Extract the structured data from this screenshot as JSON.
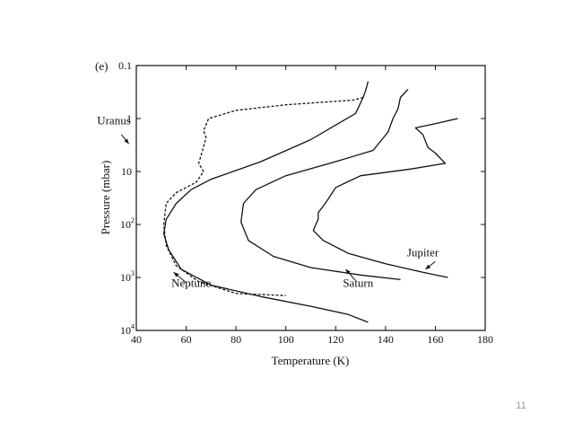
{
  "slide": {
    "number": "11"
  },
  "chart_data": {
    "type": "line",
    "panel_label": "(e)",
    "title": "",
    "xlabel": "Temperature (K)",
    "ylabel": "Pressure (mbar)",
    "xlim": [
      40,
      180
    ],
    "ylim": [
      10000,
      0.1
    ],
    "yscale": "log",
    "grid": false,
    "xticks": [
      {
        "value": 40,
        "label": "40"
      },
      {
        "value": 60,
        "label": "60"
      },
      {
        "value": 80,
        "label": "80"
      },
      {
        "value": 100,
        "label": "100"
      },
      {
        "value": 120,
        "label": "120"
      },
      {
        "value": 140,
        "label": "140"
      },
      {
        "value": 160,
        "label": "160"
      },
      {
        "value": 180,
        "label": "180"
      }
    ],
    "yticks": [
      {
        "value": 0.1,
        "base": "0.1",
        "exp": ""
      },
      {
        "value": 1,
        "base": "1",
        "exp": ""
      },
      {
        "value": 10,
        "base": "10",
        "exp": ""
      },
      {
        "value": 100,
        "base": "10",
        "exp": "2"
      },
      {
        "value": 1000,
        "base": "10",
        "exp": "3"
      },
      {
        "value": 10000,
        "base": "10",
        "exp": "4"
      }
    ],
    "series": [
      {
        "name": "Uranus",
        "dash": true,
        "label_at": [
          31,
          1.3
        ],
        "arrow_from": [
          34,
          2.0
        ],
        "arrow_to": [
          37,
          3.0
        ],
        "points": [
          [
            131,
            0.4
          ],
          [
            127,
            0.45
          ],
          [
            100,
            0.55
          ],
          [
            80,
            0.7
          ],
          [
            69,
            1.0
          ],
          [
            67,
            1.7
          ],
          [
            68,
            2.3
          ],
          [
            66,
            5
          ],
          [
            65,
            7
          ],
          [
            67,
            10
          ],
          [
            64,
            16
          ],
          [
            56,
            25
          ],
          [
            52,
            40
          ],
          [
            51,
            100
          ],
          [
            52,
            250
          ],
          [
            56,
            600
          ],
          [
            65,
            1200
          ],
          [
            80,
            2000
          ],
          [
            100,
            2200
          ]
        ]
      },
      {
        "name": "Neptune",
        "dash": false,
        "label_at": [
          62,
          1500
        ],
        "arrow_from": [
          60,
          1250
        ],
        "arrow_to": [
          55,
          800
        ],
        "points": [
          [
            133,
            0.2
          ],
          [
            132,
            0.3
          ],
          [
            131,
            0.4
          ],
          [
            128,
            0.8
          ],
          [
            110,
            2.5
          ],
          [
            90,
            6.5
          ],
          [
            70,
            14
          ],
          [
            62,
            22
          ],
          [
            56,
            40
          ],
          [
            52,
            80
          ],
          [
            51,
            150
          ],
          [
            53,
            300
          ],
          [
            58,
            700
          ],
          [
            70,
            1400
          ],
          [
            90,
            2300
          ],
          [
            110,
            3500
          ],
          [
            125,
            5000
          ],
          [
            133,
            7000
          ]
        ]
      },
      {
        "name": "Saturn",
        "dash": false,
        "label_at": [
          129,
          1500
        ],
        "arrow_from": [
          128,
          1150
        ],
        "arrow_to": [
          124,
          700
        ],
        "points": [
          [
            149,
            0.28
          ],
          [
            146,
            0.4
          ],
          [
            145,
            0.65
          ],
          [
            143,
            1.0
          ],
          [
            141,
            1.8
          ],
          [
            135,
            4
          ],
          [
            120,
            6.5
          ],
          [
            100,
            12
          ],
          [
            88,
            22
          ],
          [
            83,
            40
          ],
          [
            82,
            90
          ],
          [
            85,
            200
          ],
          [
            95,
            400
          ],
          [
            110,
            650
          ],
          [
            130,
            900
          ],
          [
            146,
            1100
          ]
        ]
      },
      {
        "name": "Jupiter",
        "dash": false,
        "label_at": [
          155,
          400
        ],
        "arrow_from": [
          160,
          500
        ],
        "arrow_to": [
          156,
          700
        ],
        "points": [
          [
            169,
            1.0
          ],
          [
            160,
            1.25
          ],
          [
            152,
            1.5
          ],
          [
            155,
            2.0
          ],
          [
            157,
            3.5
          ],
          [
            160,
            4.5
          ],
          [
            164,
            7
          ],
          [
            150,
            9
          ],
          [
            130,
            12
          ],
          [
            120,
            20
          ],
          [
            117,
            33
          ],
          [
            115,
            45
          ],
          [
            113,
            60
          ],
          [
            113,
            80
          ],
          [
            112,
            100
          ],
          [
            111,
            130
          ],
          [
            115,
            200
          ],
          [
            125,
            350
          ],
          [
            140,
            550
          ],
          [
            155,
            800
          ],
          [
            165,
            1000
          ]
        ]
      }
    ]
  }
}
